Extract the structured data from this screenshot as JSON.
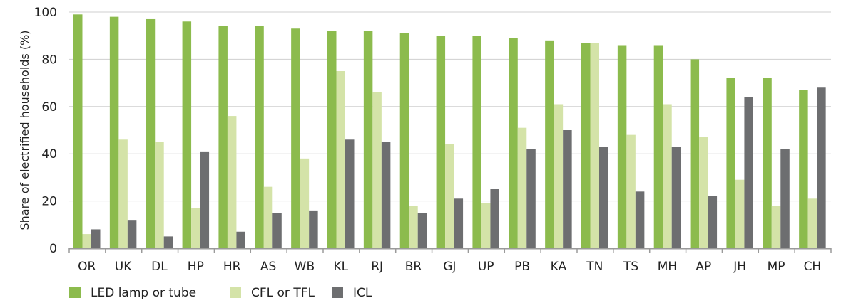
{
  "chart_data": {
    "type": "bar",
    "title": "",
    "xlabel": "",
    "ylabel": "Share of electrified households (%)",
    "ylim": [
      0,
      100
    ],
    "yticks": [
      0,
      20,
      40,
      60,
      80,
      100
    ],
    "grid": true,
    "legend_position": "bottom-left",
    "categories": [
      "OR",
      "UK",
      "DL",
      "HP",
      "HR",
      "AS",
      "WB",
      "KL",
      "RJ",
      "BR",
      "GJ",
      "UP",
      "PB",
      "KA",
      "TN",
      "TS",
      "MH",
      "AP",
      "JH",
      "MP",
      "CH"
    ],
    "series": [
      {
        "name": "LED lamp or tube",
        "color": "#8cbb4d",
        "values": [
          99,
          98,
          97,
          96,
          94,
          94,
          93,
          92,
          92,
          91,
          90,
          90,
          89,
          88,
          87,
          86,
          86,
          80,
          72,
          72,
          67
        ]
      },
      {
        "name": "CFL or TFL",
        "color": "#d4e3a8",
        "values": [
          6,
          46,
          45,
          17,
          56,
          26,
          38,
          75,
          66,
          18,
          44,
          19,
          51,
          61,
          87,
          48,
          61,
          47,
          29,
          18,
          21
        ]
      },
      {
        "name": "ICL",
        "color": "#6d6e70",
        "values": [
          8,
          12,
          5,
          41,
          7,
          15,
          16,
          46,
          45,
          15,
          21,
          25,
          42,
          50,
          43,
          24,
          43,
          22,
          64,
          42,
          68
        ]
      }
    ]
  }
}
